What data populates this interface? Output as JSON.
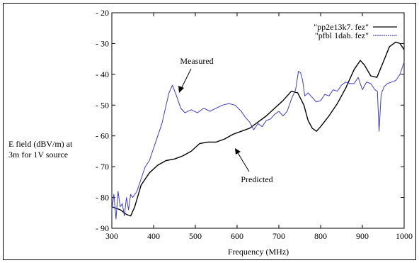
{
  "chart_data": {
    "type": "line",
    "xlabel": "Frequency (MHz)",
    "ylabel_lines": [
      "E field (dBV/m) at",
      "3m for 1V source"
    ],
    "xlim": [
      300,
      1000
    ],
    "ylim": [
      -90,
      -20
    ],
    "xticks": [
      300,
      400,
      500,
      600,
      700,
      800,
      900,
      1000
    ],
    "yticks": [
      -20,
      -30,
      -40,
      -50,
      -60,
      -70,
      -80,
      -90
    ],
    "ytick_labels": [
      "- 20",
      "- 30",
      "- 40",
      "- 50",
      "- 60",
      "- 70",
      "- 80",
      "- 90"
    ],
    "grid": false,
    "legend": "top-right",
    "series": [
      {
        "name": "\"pp2e13k7. fez\"",
        "color": "#000000",
        "style": "solid",
        "x": [
          300,
          320,
          335,
          345,
          355,
          370,
          390,
          410,
          430,
          450,
          470,
          490,
          510,
          530,
          550,
          570,
          590,
          610,
          630,
          650,
          670,
          690,
          710,
          730,
          745,
          760,
          770,
          780,
          790,
          800,
          820,
          840,
          860,
          880,
          895,
          905,
          920,
          935,
          950,
          965,
          980,
          990,
          1000
        ],
        "y": [
          -83,
          -84,
          -85.5,
          -86,
          -83,
          -76,
          -72,
          -69.5,
          -68,
          -67.5,
          -66.5,
          -65,
          -62.5,
          -62,
          -62,
          -61,
          -59.5,
          -58.5,
          -57.5,
          -55.5,
          -53.5,
          -51,
          -48.5,
          -45.5,
          -46,
          -50,
          -55,
          -57.5,
          -58.5,
          -57,
          -53.5,
          -49.5,
          -44.5,
          -38.5,
          -35.5,
          -37,
          -40.5,
          -41,
          -36,
          -31,
          -29.5,
          -30,
          -32
        ]
      },
      {
        "name": "\"pfbl 1dab. fez\"",
        "color": "#3b3bc8",
        "style": "noisy",
        "x": [
          300,
          305,
          310,
          315,
          320,
          325,
          330,
          335,
          340,
          345,
          350,
          360,
          370,
          380,
          390,
          400,
          410,
          420,
          430,
          437,
          445,
          455,
          465,
          475,
          490,
          505,
          520,
          535,
          550,
          565,
          580,
          595,
          610,
          620,
          630,
          640,
          650,
          660,
          670,
          680,
          690,
          700,
          710,
          720,
          730,
          740,
          747,
          752,
          757,
          762,
          770,
          780,
          790,
          800,
          810,
          820,
          830,
          840,
          850,
          860,
          870,
          880,
          890,
          900,
          910,
          920,
          930,
          936,
          940,
          945,
          952,
          960,
          970,
          980,
          990,
          1000
        ],
        "y": [
          -84,
          -79,
          -87,
          -78,
          -83,
          -82,
          -86,
          -80,
          -84,
          -79,
          -80,
          -78,
          -74,
          -70,
          -68,
          -64,
          -60,
          -56,
          -50,
          -46,
          -43.5,
          -47,
          -51,
          -52.5,
          -51.5,
          -52.5,
          -51,
          -52,
          -51,
          -50,
          -49.5,
          -50,
          -52,
          -54,
          -55.5,
          -58,
          -56,
          -57,
          -55,
          -54.5,
          -53,
          -52,
          -53.5,
          -52,
          -48,
          -45,
          -39,
          -39.5,
          -42,
          -47,
          -46,
          -47.5,
          -49,
          -48.5,
          -46.5,
          -47,
          -45,
          -45.5,
          -43.5,
          -42.5,
          -43,
          -43,
          -41,
          -45,
          -42.5,
          -43,
          -45,
          -45.5,
          -58.5,
          -46.5,
          -44,
          -43,
          -42.5,
          -42,
          -40,
          -36
        ]
      }
    ],
    "annotations": [
      {
        "text": "Measured",
        "at": [
          475,
          -37
        ]
      },
      {
        "text": "Predicted",
        "at": [
          645,
          -74
        ]
      }
    ]
  }
}
